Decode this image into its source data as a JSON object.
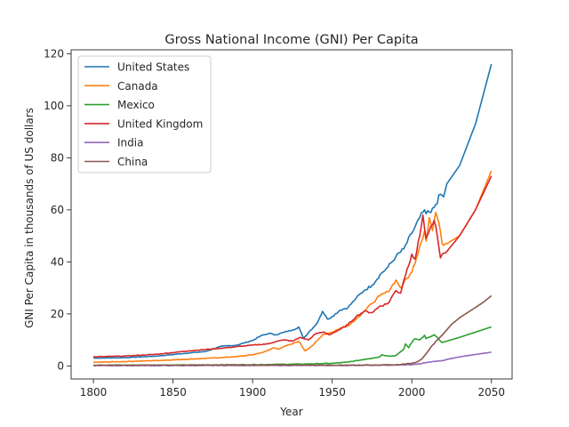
{
  "chart_data": {
    "type": "line",
    "title": "Gross National Income (GNI) Per Capita",
    "xlabel": "Year",
    "ylabel": "GNI Per Capita in thousands of US dollars",
    "xlim": [
      1786,
      2063
    ],
    "ylim": [
      -5,
      121.5
    ],
    "xticks": [
      1800,
      1850,
      1900,
      1950,
      2000,
      2050
    ],
    "yticks": [
      0,
      20,
      40,
      60,
      80,
      100,
      120
    ],
    "grid": false,
    "legend_position": "top-left",
    "series": [
      {
        "name": "United States",
        "color": "#1f77b4",
        "points": [
          [
            1800,
            3.0
          ],
          [
            1820,
            3.2
          ],
          [
            1840,
            3.8
          ],
          [
            1860,
            5.0
          ],
          [
            1870,
            5.5
          ],
          [
            1880,
            7.5
          ],
          [
            1890,
            8.0
          ],
          [
            1900,
            9.8
          ],
          [
            1905,
            11.5
          ],
          [
            1910,
            12.5
          ],
          [
            1915,
            12.0
          ],
          [
            1920,
            13.0
          ],
          [
            1925,
            13.8
          ],
          [
            1929,
            15.0
          ],
          [
            1932,
            10.5
          ],
          [
            1936,
            13.5
          ],
          [
            1940,
            16.0
          ],
          [
            1944,
            21.0
          ],
          [
            1947,
            18.0
          ],
          [
            1950,
            19.0
          ],
          [
            1955,
            21.5
          ],
          [
            1960,
            22.5
          ],
          [
            1965,
            26.0
          ],
          [
            1970,
            29.0
          ],
          [
            1975,
            31.0
          ],
          [
            1980,
            35.0
          ],
          [
            1985,
            38.0
          ],
          [
            1990,
            42.0
          ],
          [
            1995,
            45.0
          ],
          [
            2000,
            51.0
          ],
          [
            2005,
            57.0
          ],
          [
            2008,
            60.0
          ],
          [
            2009,
            58.5
          ],
          [
            2012,
            59.0
          ],
          [
            2015,
            62.0
          ],
          [
            2018,
            66.0
          ],
          [
            2020,
            65.0
          ],
          [
            2022,
            70.0
          ],
          [
            2030,
            77.0
          ],
          [
            2040,
            93.0
          ],
          [
            2050,
            116.0
          ]
        ]
      },
      {
        "name": "Canada",
        "color": "#ff7f0e",
        "points": [
          [
            1800,
            1.4
          ],
          [
            1820,
            1.7
          ],
          [
            1840,
            2.1
          ],
          [
            1860,
            2.6
          ],
          [
            1880,
            3.2
          ],
          [
            1890,
            3.6
          ],
          [
            1900,
            4.3
          ],
          [
            1905,
            5.0
          ],
          [
            1910,
            6.0
          ],
          [
            1913,
            7.0
          ],
          [
            1916,
            6.5
          ],
          [
            1920,
            7.5
          ],
          [
            1925,
            8.5
          ],
          [
            1929,
            9.5
          ],
          [
            1933,
            5.8
          ],
          [
            1938,
            8.0
          ],
          [
            1944,
            12.0
          ],
          [
            1947,
            12.5
          ],
          [
            1950,
            13.0
          ],
          [
            1955,
            14.5
          ],
          [
            1960,
            15.5
          ],
          [
            1965,
            18.0
          ],
          [
            1970,
            21.0
          ],
          [
            1975,
            24.0
          ],
          [
            1980,
            27.0
          ],
          [
            1985,
            28.5
          ],
          [
            1990,
            33.0
          ],
          [
            1993,
            30.0
          ],
          [
            1995,
            32.0
          ],
          [
            2000,
            36.0
          ],
          [
            2005,
            46.0
          ],
          [
            2008,
            52.0
          ],
          [
            2009,
            48.0
          ],
          [
            2011,
            57.0
          ],
          [
            2013,
            52.0
          ],
          [
            2015,
            59.0
          ],
          [
            2017,
            55.0
          ],
          [
            2019,
            47.0
          ],
          [
            2022,
            47.0
          ],
          [
            2030,
            50.0
          ],
          [
            2040,
            60.0
          ],
          [
            2050,
            75.0
          ]
        ]
      },
      {
        "name": "Mexico",
        "color": "#2ca02c",
        "points": [
          [
            1800,
            0.3
          ],
          [
            1850,
            0.35
          ],
          [
            1900,
            0.5
          ],
          [
            1930,
            0.7
          ],
          [
            1950,
            1.0
          ],
          [
            1960,
            1.5
          ],
          [
            1970,
            2.5
          ],
          [
            1980,
            3.5
          ],
          [
            1981,
            4.3
          ],
          [
            1985,
            3.8
          ],
          [
            1990,
            4.0
          ],
          [
            1995,
            6.5
          ],
          [
            1996,
            8.5
          ],
          [
            1998,
            7.0
          ],
          [
            2000,
            9.0
          ],
          [
            2002,
            10.5
          ],
          [
            2005,
            10.0
          ],
          [
            2008,
            11.8
          ],
          [
            2009,
            10.5
          ],
          [
            2011,
            11.0
          ],
          [
            2014,
            12.0
          ],
          [
            2016,
            11.0
          ],
          [
            2019,
            9.0
          ],
          [
            2030,
            11.0
          ],
          [
            2040,
            13.0
          ],
          [
            2050,
            15.0
          ]
        ]
      },
      {
        "name": "United Kingdom",
        "color": "#d62728",
        "points": [
          [
            1800,
            3.5
          ],
          [
            1820,
            3.8
          ],
          [
            1840,
            4.5
          ],
          [
            1860,
            5.8
          ],
          [
            1880,
            6.8
          ],
          [
            1900,
            8.0
          ],
          [
            1910,
            8.5
          ],
          [
            1915,
            9.5
          ],
          [
            1920,
            10.0
          ],
          [
            1925,
            9.5
          ],
          [
            1930,
            11.0
          ],
          [
            1935,
            10.0
          ],
          [
            1940,
            12.5
          ],
          [
            1945,
            13.0
          ],
          [
            1948,
            12.0
          ],
          [
            1950,
            12.5
          ],
          [
            1955,
            14.0
          ],
          [
            1960,
            16.0
          ],
          [
            1965,
            19.0
          ],
          [
            1970,
            21.0
          ],
          [
            1975,
            20.5
          ],
          [
            1980,
            23.0
          ],
          [
            1985,
            24.0
          ],
          [
            1990,
            29.0
          ],
          [
            1993,
            28.0
          ],
          [
            1995,
            33.0
          ],
          [
            2000,
            43.0
          ],
          [
            2002,
            41.0
          ],
          [
            2005,
            50.0
          ],
          [
            2007,
            58.0
          ],
          [
            2009,
            49.0
          ],
          [
            2011,
            52.0
          ],
          [
            2014,
            56.0
          ],
          [
            2016,
            50.0
          ],
          [
            2018,
            41.5
          ],
          [
            2022,
            44.0
          ],
          [
            2030,
            50.0
          ],
          [
            2040,
            60.0
          ],
          [
            2050,
            73.0
          ]
        ]
      },
      {
        "name": "India",
        "color": "#9467bd",
        "points": [
          [
            1800,
            0.15
          ],
          [
            1850,
            0.15
          ],
          [
            1900,
            0.2
          ],
          [
            1950,
            0.2
          ],
          [
            1970,
            0.25
          ],
          [
            1990,
            0.35
          ],
          [
            2000,
            0.5
          ],
          [
            2005,
            0.8
          ],
          [
            2010,
            1.4
          ],
          [
            2015,
            1.8
          ],
          [
            2020,
            2.1
          ],
          [
            2022,
            2.5
          ],
          [
            2030,
            3.5
          ],
          [
            2040,
            4.4
          ],
          [
            2050,
            5.3
          ]
        ]
      },
      {
        "name": "China",
        "color": "#8c564b",
        "points": [
          [
            1800,
            0.3
          ],
          [
            1850,
            0.3
          ],
          [
            1900,
            0.35
          ],
          [
            1950,
            0.3
          ],
          [
            1970,
            0.35
          ],
          [
            1990,
            0.4
          ],
          [
            2000,
            1.0
          ],
          [
            2003,
            1.5
          ],
          [
            2006,
            2.5
          ],
          [
            2008,
            4.0
          ],
          [
            2010,
            5.5
          ],
          [
            2013,
            8.0
          ],
          [
            2016,
            10.0
          ],
          [
            2020,
            12.5
          ],
          [
            2025,
            16.0
          ],
          [
            2030,
            18.5
          ],
          [
            2035,
            20.5
          ],
          [
            2040,
            22.5
          ],
          [
            2045,
            24.5
          ],
          [
            2050,
            27.0
          ]
        ]
      }
    ]
  }
}
